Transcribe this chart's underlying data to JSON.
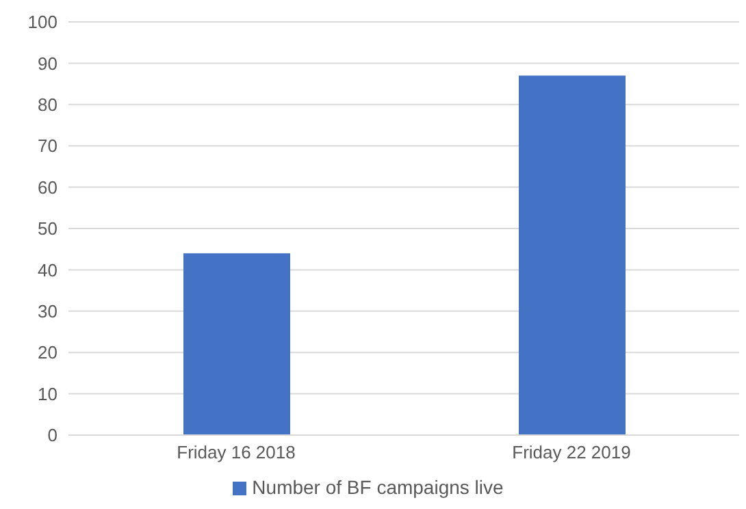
{
  "chart_data": {
    "type": "bar",
    "categories": [
      "Friday 16 2018",
      "Friday 22 2019"
    ],
    "series": [
      {
        "name": "Number of BF campaigns live",
        "color": "#4472c4",
        "values": [
          44,
          87
        ]
      }
    ],
    "ylim": [
      0,
      100
    ],
    "yticks": [
      0,
      10,
      20,
      30,
      40,
      50,
      60,
      70,
      80,
      90,
      100
    ],
    "grid": "y",
    "legend": "bottom"
  }
}
